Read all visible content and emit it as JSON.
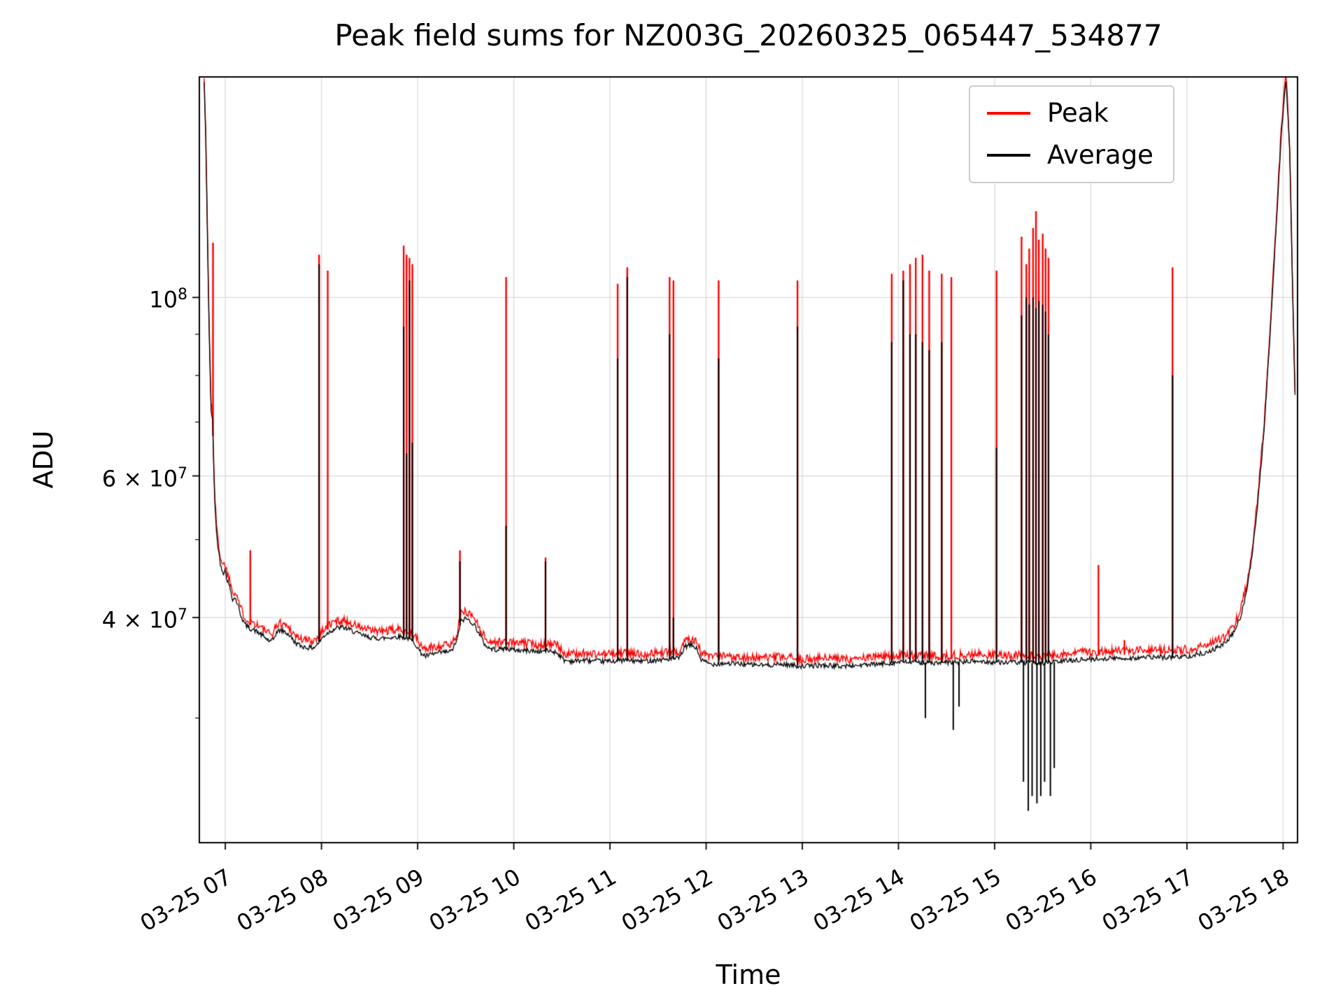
{
  "chart_data": {
    "type": "line",
    "title": "Peak field sums for NZ003G_20260325_065447_534877",
    "xlabel": "Time",
    "ylabel": "ADU",
    "yscale": "log",
    "grid": true,
    "legend_position": "upper right",
    "x_unit": "decimal_hours_on_03-25",
    "xlim": [
      6.73,
      18.15
    ],
    "ylim": [
      21000000,
      188000000
    ],
    "x_ticks": [
      {
        "value": 7,
        "label": "03-25 07"
      },
      {
        "value": 8,
        "label": "03-25 08"
      },
      {
        "value": 9,
        "label": "03-25 09"
      },
      {
        "value": 10,
        "label": "03-25 10"
      },
      {
        "value": 11,
        "label": "03-25 11"
      },
      {
        "value": 12,
        "label": "03-25 12"
      },
      {
        "value": 13,
        "label": "03-25 13"
      },
      {
        "value": 14,
        "label": "03-25 14"
      },
      {
        "value": 15,
        "label": "03-25 15"
      },
      {
        "value": 16,
        "label": "03-25 16"
      },
      {
        "value": 17,
        "label": "03-25 17"
      },
      {
        "value": 18,
        "label": "03-25 18"
      }
    ],
    "y_ticks": [
      {
        "value": 40000000,
        "base": "4 × 10",
        "exp": "7"
      },
      {
        "value": 60000000,
        "base": "6 × 10",
        "exp": "7"
      },
      {
        "value": 100000000,
        "base": "10",
        "exp": "8"
      }
    ],
    "y_minor_ticks": [
      30000000,
      50000000,
      70000000,
      80000000,
      90000000
    ],
    "series": [
      {
        "name": "Peak",
        "color": "#ff0000",
        "role": "peak"
      },
      {
        "name": "Average",
        "color": "#000000",
        "role": "average"
      }
    ],
    "style": {
      "grid_color": "#d9d9d9",
      "spine_color": "#000000",
      "background": "#ffffff"
    },
    "peak_ratio": 1.008,
    "noise": {
      "average": 0.007,
      "peak": 0.025
    },
    "average_baseline": [
      [
        6.78,
        185000000.0
      ],
      [
        6.795,
        160000000.0
      ],
      [
        6.81,
        128000000.0
      ],
      [
        6.825,
        100000000.0
      ],
      [
        6.84,
        82000000.0
      ],
      [
        6.855,
        70000000.0
      ],
      [
        6.865,
        73000000.0
      ],
      [
        6.875,
        64000000.0
      ],
      [
        6.89,
        56000000.0
      ],
      [
        6.91,
        50500000.0
      ],
      [
        6.93,
        48500000.0
      ],
      [
        6.95,
        46500000.0
      ],
      [
        6.98,
        45500000.0
      ],
      [
        7.0,
        45800000.0
      ],
      [
        7.02,
        44500000.0
      ],
      [
        7.05,
        43500000.0
      ],
      [
        7.08,
        42000000.0
      ],
      [
        7.1,
        42400000.0
      ],
      [
        7.13,
        41500000.0
      ],
      [
        7.16,
        40300000.0
      ],
      [
        7.2,
        39300000.0
      ],
      [
        7.25,
        38800000.0
      ],
      [
        7.3,
        38600000.0
      ],
      [
        7.36,
        38200000.0
      ],
      [
        7.42,
        37700000.0
      ],
      [
        7.47,
        37300000.0
      ],
      [
        7.5,
        37600000.0
      ],
      [
        7.53,
        38300000.0
      ],
      [
        7.57,
        38600000.0
      ],
      [
        7.62,
        38400000.0
      ],
      [
        7.67,
        38000000.0
      ],
      [
        7.72,
        37300000.0
      ],
      [
        7.78,
        36900000.0
      ],
      [
        7.85,
        36700000.0
      ],
      [
        7.92,
        36700000.0
      ],
      [
        7.97,
        37200000.0
      ],
      [
        8.02,
        37900000.0
      ],
      [
        8.08,
        38400000.0
      ],
      [
        8.15,
        38800000.0
      ],
      [
        8.22,
        38900000.0
      ],
      [
        8.3,
        38600000.0
      ],
      [
        8.38,
        38200000.0
      ],
      [
        8.46,
        37900000.0
      ],
      [
        8.55,
        37700000.0
      ],
      [
        8.64,
        37700000.0
      ],
      [
        8.73,
        37800000.0
      ],
      [
        8.82,
        37900000.0
      ],
      [
        8.9,
        37700000.0
      ],
      [
        8.97,
        37200000.0
      ],
      [
        9.03,
        36200000.0
      ],
      [
        9.08,
        35800000.0
      ],
      [
        9.15,
        36000000.0
      ],
      [
        9.25,
        36200000.0
      ],
      [
        9.35,
        36300000.0
      ],
      [
        9.41,
        37500000.0
      ],
      [
        9.45,
        39600000.0
      ],
      [
        9.5,
        39900000.0
      ],
      [
        9.55,
        39600000.0
      ],
      [
        9.6,
        39000000.0
      ],
      [
        9.65,
        38000000.0
      ],
      [
        9.7,
        37000000.0
      ],
      [
        9.75,
        36600000.0
      ],
      [
        9.82,
        36500000.0
      ],
      [
        9.9,
        36600000.0
      ],
      [
        9.98,
        36500000.0
      ],
      [
        10.06,
        36400000.0
      ],
      [
        10.15,
        36400000.0
      ],
      [
        10.25,
        36300000.0
      ],
      [
        10.35,
        36400000.0
      ],
      [
        10.45,
        36200000.0
      ],
      [
        10.52,
        35400000.0
      ],
      [
        10.62,
        35300000.0
      ],
      [
        10.72,
        35400000.0
      ],
      [
        10.85,
        35300000.0
      ],
      [
        11.0,
        35300000.0
      ],
      [
        11.15,
        35400000.0
      ],
      [
        11.3,
        35300000.0
      ],
      [
        11.45,
        35400000.0
      ],
      [
        11.6,
        35500000.0
      ],
      [
        11.72,
        35600000.0
      ],
      [
        11.78,
        36800000.0
      ],
      [
        11.85,
        37000000.0
      ],
      [
        11.9,
        36600000.0
      ],
      [
        11.95,
        35400000.0
      ],
      [
        12.05,
        35000000.0
      ],
      [
        12.2,
        35100000.0
      ],
      [
        12.4,
        35000000.0
      ],
      [
        12.6,
        34900000.0
      ],
      [
        12.8,
        35000000.0
      ],
      [
        13.0,
        34800000.0
      ],
      [
        13.2,
        34900000.0
      ],
      [
        13.4,
        34800000.0
      ],
      [
        13.6,
        34900000.0
      ],
      [
        13.8,
        35000000.0
      ],
      [
        14.0,
        35200000.0
      ],
      [
        14.2,
        35200000.0
      ],
      [
        14.4,
        35100000.0
      ],
      [
        14.6,
        35200000.0
      ],
      [
        14.8,
        35300000.0
      ],
      [
        15.0,
        35200000.0
      ],
      [
        15.2,
        35200000.0
      ],
      [
        15.4,
        35100000.0
      ],
      [
        15.6,
        35200000.0
      ],
      [
        15.8,
        35400000.0
      ],
      [
        16.0,
        35500000.0
      ],
      [
        16.2,
        35600000.0
      ],
      [
        16.4,
        35600000.0
      ],
      [
        16.6,
        35700000.0
      ],
      [
        16.8,
        35700000.0
      ],
      [
        17.0,
        35800000.0
      ],
      [
        17.1,
        36000000.0
      ],
      [
        17.2,
        36200000.0
      ],
      [
        17.3,
        36600000.0
      ],
      [
        17.4,
        37200000.0
      ],
      [
        17.48,
        38200000.0
      ],
      [
        17.55,
        39800000.0
      ],
      [
        17.62,
        43000000.0
      ],
      [
        17.68,
        48000000.0
      ],
      [
        17.74,
        56000000.0
      ],
      [
        17.8,
        68000000.0
      ],
      [
        17.86,
        88000000.0
      ],
      [
        17.92,
        118000000.0
      ],
      [
        17.98,
        158000000.0
      ],
      [
        18.03,
        188000000.0
      ],
      [
        18.07,
        150000000.0
      ],
      [
        18.1,
        100000000.0
      ],
      [
        18.13,
        70000000.0
      ]
    ],
    "spikes": [
      {
        "t": 6.872,
        "peak": 117000000.0,
        "avg": 64000000.0
      },
      {
        "t": 7.26,
        "peak": 48500000.0,
        "avg": 39000000.0
      },
      {
        "t": 7.975,
        "peak": 113000000.0,
        "avg": 110000000.0
      },
      {
        "t": 8.065,
        "peak": 108000000.0,
        "avg": 39000000.0
      },
      {
        "t": 8.855,
        "peak": 116000000.0,
        "avg": 92000000.0
      },
      {
        "t": 8.885,
        "peak": 113000000.0,
        "avg": 64000000.0
      },
      {
        "t": 8.915,
        "peak": 112000000.0,
        "avg": 105000000.0
      },
      {
        "t": 8.945,
        "peak": 110000000.0,
        "avg": 66000000.0
      },
      {
        "t": 9.44,
        "peak": 48500000.0,
        "avg": 47000000.0
      },
      {
        "t": 9.92,
        "peak": 106000000.0,
        "avg": 52000000.0
      },
      {
        "t": 10.33,
        "peak": 47500000.0,
        "avg": 47000000.0
      },
      {
        "t": 11.08,
        "peak": 104000000.0,
        "avg": 84000000.0
      },
      {
        "t": 11.18,
        "peak": 109000000.0,
        "avg": 106000000.0
      },
      {
        "t": 11.62,
        "peak": 106000000.0,
        "avg": 90000000.0
      },
      {
        "t": 11.66,
        "peak": 105000000.0,
        "avg": 40000000.0
      },
      {
        "t": 12.13,
        "peak": 105000000.0,
        "avg": 84000000.0
      },
      {
        "t": 12.95,
        "peak": 105000000.0,
        "avg": 92000000.0
      },
      {
        "t": 13.93,
        "peak": 107000000.0,
        "avg": 88000000.0
      },
      {
        "t": 14.05,
        "peak": 108000000.0,
        "avg": 105000000.0
      },
      {
        "t": 14.12,
        "peak": 110000000.0,
        "avg": 90000000.0
      },
      {
        "t": 14.18,
        "peak": 112000000.0,
        "avg": 90000000.0
      },
      {
        "t": 14.25,
        "peak": 113000000.0,
        "avg": 88000000.0
      },
      {
        "t": 14.32,
        "peak": 108000000.0,
        "avg": 86000000.0
      },
      {
        "t": 14.45,
        "peak": 107000000.0,
        "avg": 88000000.0
      },
      {
        "t": 14.55,
        "peak": 106000000.0,
        "avg": 36000000.0
      },
      {
        "t": 15.02,
        "peak": 108000000.0,
        "avg": 65000000.0
      },
      {
        "t": 15.28,
        "peak": 119000000.0,
        "avg": 95000000.0
      },
      {
        "t": 15.33,
        "peak": 110000000.0,
        "avg": 100000000.0
      },
      {
        "t": 15.36,
        "peak": 115000000.0,
        "avg": 98000000.0
      },
      {
        "t": 15.4,
        "peak": 122000000.0,
        "avg": 100000000.0
      },
      {
        "t": 15.43,
        "peak": 128000000.0,
        "avg": 97000000.0
      },
      {
        "t": 15.46,
        "peak": 118000000.0,
        "avg": 99000000.0
      },
      {
        "t": 15.5,
        "peak": 120000000.0,
        "avg": 98000000.0
      },
      {
        "t": 15.53,
        "peak": 115000000.0,
        "avg": 96000000.0
      },
      {
        "t": 15.56,
        "peak": 112000000.0,
        "avg": 90000000.0
      },
      {
        "t": 16.08,
        "peak": 46500000.0,
        "avg": 36000000.0
      },
      {
        "t": 16.35,
        "peak": 37500000.0,
        "avg": 36000000.0
      },
      {
        "t": 16.85,
        "peak": 109000000.0,
        "avg": 80000000.0
      }
    ],
    "dips": [
      [
        14.28,
        30000000.0
      ],
      [
        14.57,
        29000000.0
      ],
      [
        14.63,
        31000000.0
      ],
      [
        15.3,
        25000000.0
      ],
      [
        15.35,
        23000000.0
      ],
      [
        15.39,
        24000000.0
      ],
      [
        15.44,
        23500000.0
      ],
      [
        15.48,
        24000000.0
      ],
      [
        15.52,
        25000000.0
      ],
      [
        15.58,
        24000000.0
      ],
      [
        15.62,
        26000000.0
      ]
    ]
  }
}
